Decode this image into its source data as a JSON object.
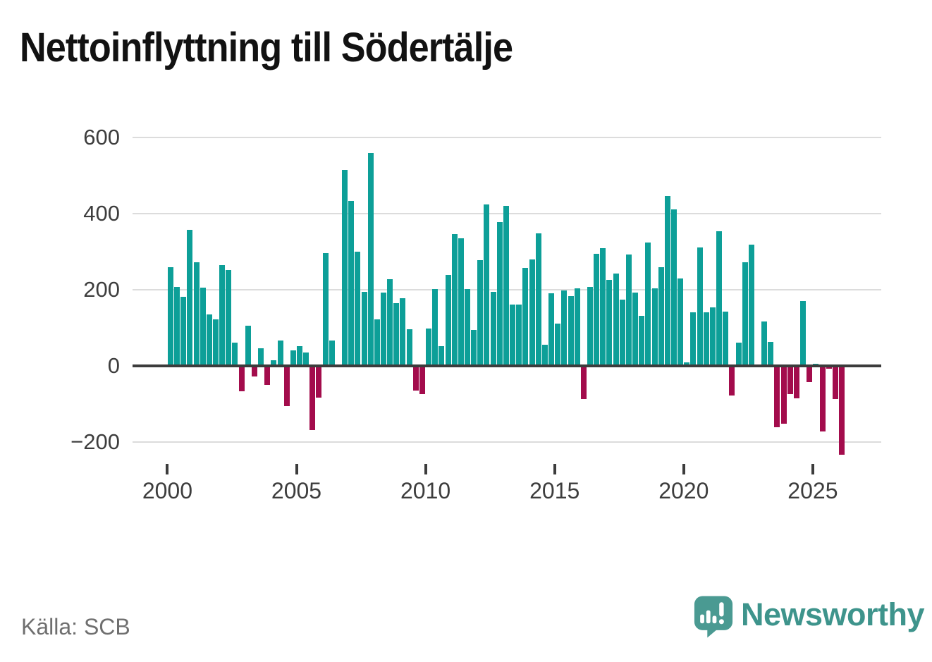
{
  "title": "Nettoinflyttning till Södertälje",
  "source": "Källa: SCB",
  "branding": {
    "name": "Newsworthy",
    "icon": "speech-bubble-bar-chart-icon",
    "color": "#3e948c"
  },
  "chart_data": {
    "type": "bar",
    "title": "Nettoinflyttning till Södertälje",
    "xlabel": "",
    "ylabel": "",
    "x_unit": "quarter",
    "x_start": "2000-Q1",
    "x_end": "2026-Q1",
    "values": [
      260,
      208,
      182,
      357,
      273,
      205,
      135,
      122,
      265,
      252,
      61,
      -67,
      105,
      -27,
      46,
      -50,
      15,
      67,
      -106,
      41,
      51,
      36,
      -168,
      -84,
      296,
      67,
      0,
      514,
      433,
      300,
      195,
      559,
      122,
      192,
      227,
      165,
      178,
      97,
      -65,
      -74,
      98,
      202,
      52,
      239,
      346,
      336,
      201,
      95,
      277,
      424,
      194,
      377,
      421,
      162,
      162,
      258,
      279,
      348,
      55,
      190,
      111,
      199,
      183,
      204,
      -87,
      207,
      294,
      310,
      226,
      243,
      174,
      293,
      192,
      132,
      324,
      204,
      259,
      447,
      411,
      230,
      9,
      141,
      312,
      141,
      154,
      353,
      142,
      -78,
      61,
      272,
      319,
      0,
      116,
      63,
      -162,
      -151,
      -74,
      -86,
      170,
      -43,
      6,
      -173,
      -8,
      -87,
      -234
    ],
    "x_tick_years": [
      2000,
      2005,
      2010,
      2015,
      2020,
      2025
    ],
    "y_ticks": [
      600,
      400,
      200,
      0,
      -200
    ],
    "ylim": [
      -260,
      640
    ],
    "grid": true,
    "legend": false,
    "positive_color": "#0d9f98",
    "negative_color": "#a30c4c"
  }
}
